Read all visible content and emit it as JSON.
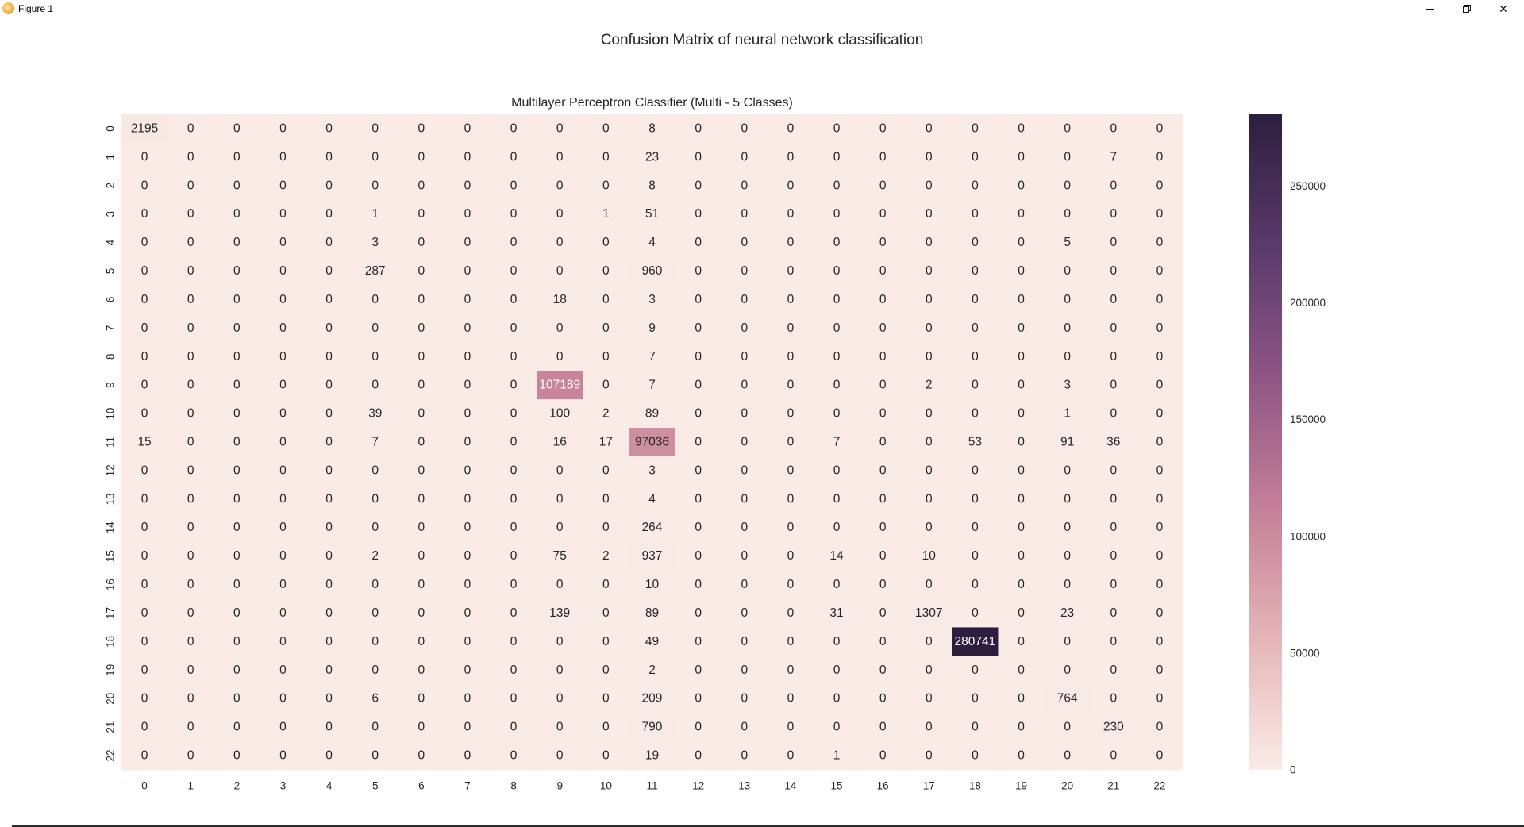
{
  "window": {
    "title": "Figure 1",
    "icon": "matplotlib-logo-icon",
    "controls": {
      "minimize": "minimize-icon",
      "maximize": "restore-icon",
      "close": "close-icon"
    }
  },
  "figure": {
    "suptitle": "Confusion Matrix of neural network classification"
  },
  "chart_data": {
    "type": "heatmap",
    "title": "Multilayer Perceptron Classifier (Multi - 5 Classes)",
    "x_labels": [
      "0",
      "1",
      "2",
      "3",
      "4",
      "5",
      "6",
      "7",
      "8",
      "9",
      "10",
      "11",
      "12",
      "13",
      "14",
      "15",
      "16",
      "17",
      "18",
      "19",
      "20",
      "21",
      "22"
    ],
    "y_labels": [
      "0",
      "1",
      "2",
      "3",
      "4",
      "5",
      "6",
      "7",
      "8",
      "9",
      "10",
      "11",
      "12",
      "13",
      "14",
      "15",
      "16",
      "17",
      "18",
      "19",
      "20",
      "21",
      "22"
    ],
    "matrix": [
      [
        2195,
        0,
        0,
        0,
        0,
        0,
        0,
        0,
        0,
        0,
        0,
        8,
        0,
        0,
        0,
        0,
        0,
        0,
        0,
        0,
        0,
        0,
        0
      ],
      [
        0,
        0,
        0,
        0,
        0,
        0,
        0,
        0,
        0,
        0,
        0,
        23,
        0,
        0,
        0,
        0,
        0,
        0,
        0,
        0,
        0,
        7,
        0
      ],
      [
        0,
        0,
        0,
        0,
        0,
        0,
        0,
        0,
        0,
        0,
        0,
        8,
        0,
        0,
        0,
        0,
        0,
        0,
        0,
        0,
        0,
        0,
        0
      ],
      [
        0,
        0,
        0,
        0,
        0,
        1,
        0,
        0,
        0,
        0,
        1,
        51,
        0,
        0,
        0,
        0,
        0,
        0,
        0,
        0,
        0,
        0,
        0
      ],
      [
        0,
        0,
        0,
        0,
        0,
        3,
        0,
        0,
        0,
        0,
        0,
        4,
        0,
        0,
        0,
        0,
        0,
        0,
        0,
        0,
        5,
        0,
        0
      ],
      [
        0,
        0,
        0,
        0,
        0,
        287,
        0,
        0,
        0,
        0,
        0,
        960,
        0,
        0,
        0,
        0,
        0,
        0,
        0,
        0,
        0,
        0,
        0
      ],
      [
        0,
        0,
        0,
        0,
        0,
        0,
        0,
        0,
        0,
        18,
        0,
        3,
        0,
        0,
        0,
        0,
        0,
        0,
        0,
        0,
        0,
        0,
        0
      ],
      [
        0,
        0,
        0,
        0,
        0,
        0,
        0,
        0,
        0,
        0,
        0,
        9,
        0,
        0,
        0,
        0,
        0,
        0,
        0,
        0,
        0,
        0,
        0
      ],
      [
        0,
        0,
        0,
        0,
        0,
        0,
        0,
        0,
        0,
        0,
        0,
        7,
        0,
        0,
        0,
        0,
        0,
        0,
        0,
        0,
        0,
        0,
        0
      ],
      [
        0,
        0,
        0,
        0,
        0,
        0,
        0,
        0,
        0,
        107189,
        0,
        7,
        0,
        0,
        0,
        0,
        0,
        2,
        0,
        0,
        3,
        0,
        0
      ],
      [
        0,
        0,
        0,
        0,
        0,
        39,
        0,
        0,
        0,
        100,
        2,
        89,
        0,
        0,
        0,
        0,
        0,
        0,
        0,
        0,
        1,
        0,
        0
      ],
      [
        15,
        0,
        0,
        0,
        0,
        7,
        0,
        0,
        0,
        16,
        17,
        97036,
        0,
        0,
        0,
        7,
        0,
        0,
        53,
        0,
        91,
        36,
        0
      ],
      [
        0,
        0,
        0,
        0,
        0,
        0,
        0,
        0,
        0,
        0,
        0,
        3,
        0,
        0,
        0,
        0,
        0,
        0,
        0,
        0,
        0,
        0,
        0
      ],
      [
        0,
        0,
        0,
        0,
        0,
        0,
        0,
        0,
        0,
        0,
        0,
        4,
        0,
        0,
        0,
        0,
        0,
        0,
        0,
        0,
        0,
        0,
        0
      ],
      [
        0,
        0,
        0,
        0,
        0,
        0,
        0,
        0,
        0,
        0,
        0,
        264,
        0,
        0,
        0,
        0,
        0,
        0,
        0,
        0,
        0,
        0,
        0
      ],
      [
        0,
        0,
        0,
        0,
        0,
        2,
        0,
        0,
        0,
        75,
        2,
        937,
        0,
        0,
        0,
        14,
        0,
        10,
        0,
        0,
        0,
        0,
        0
      ],
      [
        0,
        0,
        0,
        0,
        0,
        0,
        0,
        0,
        0,
        0,
        0,
        10,
        0,
        0,
        0,
        0,
        0,
        0,
        0,
        0,
        0,
        0,
        0
      ],
      [
        0,
        0,
        0,
        0,
        0,
        0,
        0,
        0,
        0,
        139,
        0,
        89,
        0,
        0,
        0,
        31,
        0,
        1307,
        0,
        0,
        23,
        0,
        0
      ],
      [
        0,
        0,
        0,
        0,
        0,
        0,
        0,
        0,
        0,
        0,
        0,
        49,
        0,
        0,
        0,
        0,
        0,
        0,
        280741,
        0,
        0,
        0,
        0
      ],
      [
        0,
        0,
        0,
        0,
        0,
        0,
        0,
        0,
        0,
        0,
        0,
        2,
        0,
        0,
        0,
        0,
        0,
        0,
        0,
        0,
        0,
        0,
        0
      ],
      [
        0,
        0,
        0,
        0,
        0,
        6,
        0,
        0,
        0,
        0,
        0,
        209,
        0,
        0,
        0,
        0,
        0,
        0,
        0,
        0,
        764,
        0,
        0
      ],
      [
        0,
        0,
        0,
        0,
        0,
        0,
        0,
        0,
        0,
        0,
        0,
        790,
        0,
        0,
        0,
        0,
        0,
        0,
        0,
        0,
        0,
        230,
        0
      ],
      [
        0,
        0,
        0,
        0,
        0,
        0,
        0,
        0,
        0,
        0,
        0,
        19,
        0,
        0,
        0,
        1,
        0,
        0,
        0,
        0,
        0,
        0,
        0
      ]
    ],
    "colorbar": {
      "min": 0,
      "max": 280741,
      "ticks": [
        0,
        50000,
        100000,
        150000,
        200000,
        250000
      ],
      "colors": [
        "#faebe7",
        "#e5b5b7",
        "#c47f98",
        "#8f5585",
        "#593a6b",
        "#2d1e3e"
      ]
    },
    "grid": false,
    "annotated": true
  }
}
